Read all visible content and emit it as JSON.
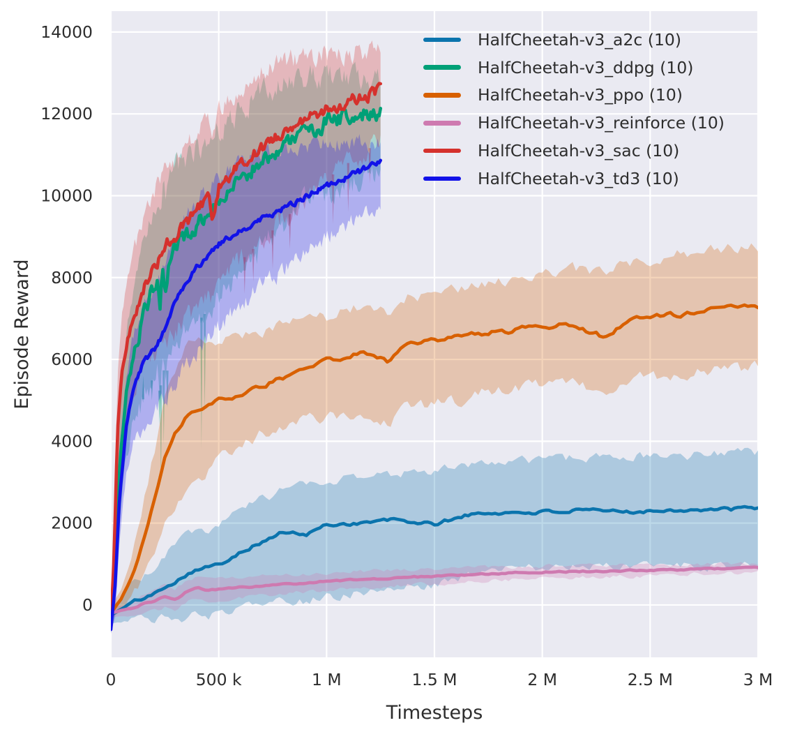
{
  "chart_data": {
    "type": "line",
    "title": "",
    "xlabel": "Timesteps",
    "ylabel": "Episode Reward",
    "xlim": [
      0,
      3000000
    ],
    "ylim": [
      -1280,
      14510
    ],
    "grid": true,
    "background_color": "#eaeaf2",
    "grid_color": "#ffffff",
    "text_color": "#2d2d2d",
    "band_alpha": 0.27,
    "legend_position": "upper right",
    "xticks": [
      {
        "t": 0,
        "label": "0"
      },
      {
        "t": 500000,
        "label": "500 k"
      },
      {
        "t": 1000000,
        "label": "1 M"
      },
      {
        "t": 1500000,
        "label": "1.5 M"
      },
      {
        "t": 2000000,
        "label": "2 M"
      },
      {
        "t": 2500000,
        "label": "2.5 M"
      },
      {
        "t": 3000000,
        "label": "3 M"
      }
    ],
    "yticks": [
      {
        "v": 0,
        "label": "0"
      },
      {
        "v": 2000,
        "label": "2000"
      },
      {
        "v": 4000,
        "label": "4000"
      },
      {
        "v": 6000,
        "label": "6000"
      },
      {
        "v": 8000,
        "label": "8000"
      },
      {
        "v": 10000,
        "label": "10000"
      },
      {
        "v": 12000,
        "label": "12000"
      },
      {
        "v": 14000,
        "label": "14000"
      }
    ],
    "series": [
      {
        "name": "HalfCheetah-v3_a2c (10)",
        "color": "#0b74ad",
        "end": 3000000,
        "line_noise": 45,
        "band_noise": 120,
        "points": [
          [
            0,
            -250,
            -450,
            -100
          ],
          [
            50000,
            -100,
            -400,
            200
          ],
          [
            100000,
            70,
            -350,
            500
          ],
          [
            150000,
            170,
            -300,
            700
          ],
          [
            200000,
            260,
            -350,
            900
          ],
          [
            250000,
            460,
            -300,
            1200
          ],
          [
            300000,
            580,
            -350,
            1500
          ],
          [
            350000,
            750,
            -300,
            1700
          ],
          [
            400000,
            890,
            -250,
            1800
          ],
          [
            500000,
            970,
            -250,
            1900
          ],
          [
            600000,
            1310,
            -100,
            2300
          ],
          [
            700000,
            1530,
            0,
            2600
          ],
          [
            800000,
            1790,
            100,
            2800
          ],
          [
            900000,
            1700,
            100,
            2900
          ],
          [
            1000000,
            1960,
            200,
            3000
          ],
          [
            1150000,
            2000,
            300,
            3100
          ],
          [
            1300000,
            2080,
            400,
            3200
          ],
          [
            1500000,
            1970,
            500,
            3300
          ],
          [
            1650000,
            2200,
            700,
            3400
          ],
          [
            1800000,
            2250,
            850,
            3500
          ],
          [
            2000000,
            2270,
            900,
            3550
          ],
          [
            2200000,
            2300,
            950,
            3600
          ],
          [
            2350000,
            2280,
            900,
            3650
          ],
          [
            2500000,
            2300,
            950,
            3600
          ],
          [
            2650000,
            2330,
            950,
            3650
          ],
          [
            2800000,
            2320,
            950,
            3700
          ],
          [
            3000000,
            2370,
            960,
            3720
          ]
        ]
      },
      {
        "name": "HalfCheetah-v3_ddpg (10)",
        "color": "#00a077",
        "end": 1250000,
        "line_noise": 200,
        "band_noise": 320,
        "spikes": [
          [
            150000,
            5600
          ],
          [
            190000,
            5000
          ],
          [
            225000,
            4400
          ],
          [
            232000,
            3000
          ],
          [
            245000,
            3900
          ],
          [
            262000,
            4800
          ],
          [
            420000,
            3800
          ],
          [
            435000,
            4700
          ]
        ],
        "points": [
          [
            0,
            -350,
            -450,
            -250
          ],
          [
            20000,
            800,
            0,
            1700
          ],
          [
            40000,
            3300,
            2000,
            4600
          ],
          [
            70000,
            5100,
            3600,
            6500
          ],
          [
            100000,
            6000,
            4300,
            7600
          ],
          [
            140000,
            6800,
            4900,
            8500
          ],
          [
            180000,
            7500,
            5400,
            9300
          ],
          [
            215000,
            7950,
            5700,
            9800
          ],
          [
            228000,
            7350,
            5100,
            9600
          ],
          [
            240000,
            8300,
            5900,
            10200
          ],
          [
            255000,
            7650,
            5400,
            9900
          ],
          [
            270000,
            8550,
            6100,
            10400
          ],
          [
            300000,
            8800,
            6300,
            10650
          ],
          [
            350000,
            9050,
            6600,
            10900
          ],
          [
            400000,
            9300,
            6900,
            11100
          ],
          [
            450000,
            9550,
            7200,
            11300
          ],
          [
            500000,
            9900,
            7500,
            11600
          ],
          [
            600000,
            10450,
            8100,
            12100
          ],
          [
            700000,
            10850,
            8700,
            12500
          ],
          [
            800000,
            11250,
            9300,
            12750
          ],
          [
            900000,
            11550,
            9800,
            12900
          ],
          [
            1000000,
            11800,
            10100,
            12950
          ],
          [
            1100000,
            11950,
            10300,
            12950
          ],
          [
            1250000,
            12050,
            10500,
            12900
          ]
        ]
      },
      {
        "name": "HalfCheetah-v3_ppo (10)",
        "color": "#d86000",
        "end": 3000000,
        "line_noise": 60,
        "band_noise": 160,
        "points": [
          [
            0,
            -200,
            -350,
            -50
          ],
          [
            50000,
            150,
            -100,
            400
          ],
          [
            100000,
            700,
            200,
            1300
          ],
          [
            150000,
            1500,
            700,
            2400
          ],
          [
            200000,
            2500,
            1300,
            3700
          ],
          [
            250000,
            3600,
            2000,
            5000
          ],
          [
            300000,
            4200,
            2400,
            5800
          ],
          [
            350000,
            4600,
            2700,
            6300
          ],
          [
            400000,
            4750,
            2900,
            6500
          ],
          [
            500000,
            5000,
            3600,
            6500
          ],
          [
            600000,
            5100,
            3900,
            6600
          ],
          [
            700000,
            5350,
            4200,
            6700
          ],
          [
            800000,
            5550,
            4400,
            6900
          ],
          [
            900000,
            5800,
            4500,
            7000
          ],
          [
            1000000,
            5950,
            4600,
            7050
          ],
          [
            1100000,
            6100,
            4700,
            7200
          ],
          [
            1200000,
            6150,
            4700,
            7300
          ],
          [
            1290000,
            5950,
            4500,
            7200
          ],
          [
            1350000,
            6300,
            4800,
            7500
          ],
          [
            1450000,
            6450,
            4900,
            7600
          ],
          [
            1600000,
            6550,
            5000,
            7700
          ],
          [
            1800000,
            6680,
            5300,
            7900
          ],
          [
            2000000,
            6800,
            5400,
            8100
          ],
          [
            2150000,
            6850,
            5400,
            8200
          ],
          [
            2280000,
            6550,
            5200,
            8100
          ],
          [
            2400000,
            6950,
            5500,
            8400
          ],
          [
            2550000,
            7050,
            5600,
            8500
          ],
          [
            2700000,
            7150,
            5700,
            8600
          ],
          [
            2850000,
            7250,
            5750,
            8700
          ],
          [
            3000000,
            7280,
            5800,
            8750
          ]
        ]
      },
      {
        "name": "HalfCheetah-v3_reinforce (10)",
        "color": "#ce7ab0",
        "end": 3000000,
        "line_noise": 18,
        "band_noise": 50,
        "points": [
          [
            0,
            -200,
            -300,
            -100
          ],
          [
            50000,
            -130,
            -280,
            0
          ],
          [
            100000,
            -80,
            -250,
            80
          ],
          [
            150000,
            30,
            -180,
            220
          ],
          [
            200000,
            90,
            -150,
            330
          ],
          [
            250000,
            210,
            -60,
            480
          ],
          [
            300000,
            120,
            -150,
            390
          ],
          [
            350000,
            330,
            60,
            600
          ],
          [
            400000,
            410,
            150,
            680
          ],
          [
            450000,
            350,
            80,
            620
          ],
          [
            500000,
            390,
            130,
            650
          ],
          [
            600000,
            430,
            180,
            680
          ],
          [
            700000,
            460,
            220,
            700
          ],
          [
            800000,
            500,
            270,
            730
          ],
          [
            900000,
            540,
            320,
            760
          ],
          [
            1000000,
            580,
            370,
            790
          ],
          [
            1200000,
            630,
            430,
            830
          ],
          [
            1400000,
            680,
            490,
            870
          ],
          [
            1600000,
            730,
            550,
            900
          ],
          [
            1800000,
            770,
            610,
            930
          ],
          [
            2000000,
            800,
            650,
            950
          ],
          [
            2200000,
            820,
            680,
            960
          ],
          [
            2400000,
            840,
            700,
            970
          ],
          [
            2600000,
            860,
            730,
            980
          ],
          [
            2800000,
            890,
            770,
            1000
          ],
          [
            3000000,
            920,
            800,
            1030
          ]
        ]
      },
      {
        "name": "HalfCheetah-v3_sac (10)",
        "color": "#d5312d",
        "end": 1250000,
        "line_noise": 150,
        "band_noise": 260,
        "spikes": [
          [
            620000,
            7600
          ],
          [
            660000,
            7900
          ],
          [
            750000,
            8200
          ],
          [
            830000,
            8700
          ],
          [
            1030000,
            9300
          ],
          [
            1100000,
            9600
          ],
          [
            1200000,
            10300
          ]
        ],
        "points": [
          [
            0,
            -450,
            -550,
            -350
          ],
          [
            15000,
            1200,
            300,
            2100
          ],
          [
            30000,
            4200,
            2800,
            5500
          ],
          [
            50000,
            5600,
            4000,
            7000
          ],
          [
            75000,
            6400,
            4700,
            7900
          ],
          [
            100000,
            6950,
            5100,
            8500
          ],
          [
            150000,
            7700,
            5700,
            9400
          ],
          [
            200000,
            8250,
            6100,
            10100
          ],
          [
            250000,
            8750,
            6400,
            10650
          ],
          [
            300000,
            9050,
            6700,
            10900
          ],
          [
            350000,
            9350,
            7000,
            11200
          ],
          [
            400000,
            9650,
            7300,
            11500
          ],
          [
            450000,
            9900,
            7600,
            11800
          ],
          [
            470000,
            9500,
            7500,
            11600
          ],
          [
            500000,
            10250,
            7900,
            12100
          ],
          [
            600000,
            10750,
            8400,
            12600
          ],
          [
            700000,
            11150,
            8900,
            13000
          ],
          [
            800000,
            11550,
            9400,
            13300
          ],
          [
            900000,
            11850,
            9900,
            13400
          ],
          [
            1000000,
            12100,
            10400,
            13450
          ],
          [
            1100000,
            12300,
            10800,
            13500
          ],
          [
            1180000,
            12430,
            11100,
            13520
          ],
          [
            1250000,
            12580,
            11320,
            13560
          ]
        ]
      },
      {
        "name": "HalfCheetah-v3_td3 (10)",
        "color": "#1212e8",
        "end": 1250000,
        "line_noise": 70,
        "band_noise": 230,
        "points": [
          [
            0,
            -600,
            -700,
            -500
          ],
          [
            20000,
            500,
            -300,
            1300
          ],
          [
            40000,
            2600,
            1500,
            3700
          ],
          [
            70000,
            4300,
            3100,
            5500
          ],
          [
            100000,
            5200,
            3900,
            6500
          ],
          [
            150000,
            5900,
            4400,
            7300
          ],
          [
            200000,
            6250,
            4700,
            7800
          ],
          [
            250000,
            6700,
            5000,
            8300
          ],
          [
            300000,
            7400,
            5500,
            9000
          ],
          [
            350000,
            7900,
            5900,
            9500
          ],
          [
            400000,
            8250,
            6200,
            9900
          ],
          [
            450000,
            8550,
            6500,
            10200
          ],
          [
            500000,
            8800,
            6800,
            10450
          ],
          [
            600000,
            9150,
            7300,
            10800
          ],
          [
            700000,
            9450,
            7800,
            11000
          ],
          [
            800000,
            9700,
            8200,
            11100
          ],
          [
            900000,
            9950,
            8600,
            11200
          ],
          [
            1000000,
            10250,
            9000,
            11250
          ],
          [
            1100000,
            10450,
            9300,
            11300
          ],
          [
            1250000,
            10850,
            9830,
            11320
          ]
        ]
      }
    ]
  }
}
